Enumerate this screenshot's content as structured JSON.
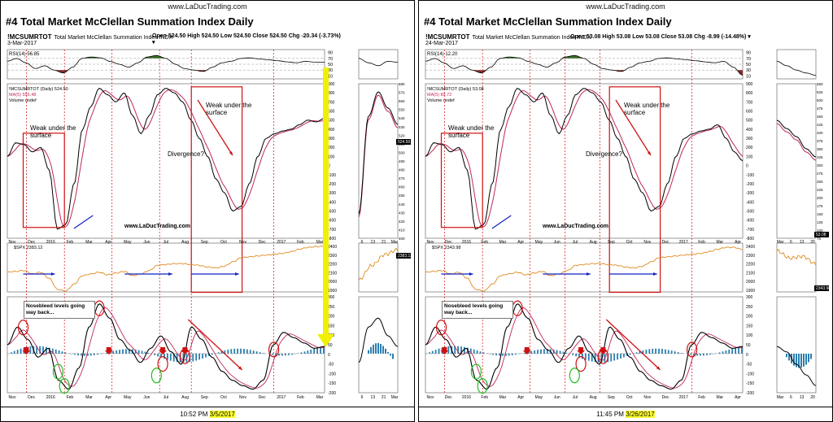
{
  "panels": [
    {
      "url": "www.LaDucTrading.com",
      "title": "#4 Total Market McClellan Summation Index Daily",
      "symbol": "!MCSUMRTOT",
      "symbol_desc": "Total Market McClellan Summation Index  INDX",
      "date": "3-Mar-2017",
      "ohlc": "Open 524.50  High 524.50  Low 524.50  Close 524.50  Chg -20.34 (-3.73%) ▾",
      "rsi_label": "RSI(14) 56.85",
      "price_legend": [
        "!MCSUMRTOT (Daily) 524.50",
        "MA(5) 555.48",
        "Volume undef"
      ],
      "spx_legend": "$SPX 2383.12",
      "spx_last": "2383.12",
      "sum_last": "524.50",
      "footer_time": "10:52 PM",
      "footer_date": "3/5/2017",
      "annotations": {
        "weak1": "Weak under the surface",
        "weak2": "Weak under the surface",
        "divergence": "Divergence?",
        "nosebleed": "Nosebleed levels going way back..."
      },
      "watermark": "www.LaDucTrading.com",
      "xticks_main": [
        "Nov",
        "Dec",
        "2016",
        "Feb",
        "Mar",
        "Apr",
        "May",
        "Jun",
        "Jul",
        "Aug",
        "Sep",
        "Oct",
        "Nov",
        "Dec",
        "2017",
        "Feb",
        "Mar"
      ],
      "xticks_zoom": [
        "6",
        "13",
        "21",
        "Mar"
      ],
      "yticks_rsi": [
        "90",
        "70",
        "50",
        "30",
        "10"
      ],
      "yticks_price": [
        "900",
        "800",
        "700",
        "600",
        "500",
        "400",
        "300",
        "200",
        "100",
        "0",
        "-100",
        "-200",
        "-300",
        "-400",
        "-500",
        "-600",
        "-700",
        "-800"
      ],
      "yticks_price_zoom": [
        "580",
        "570",
        "560",
        "550",
        "540",
        "530",
        "520",
        "510",
        "500",
        "490",
        "480",
        "470",
        "460",
        "450",
        "440",
        "430",
        "420",
        "410",
        "400"
      ],
      "yticks_spx": [
        "2400",
        "2300",
        "2200",
        "2100",
        "2000",
        "1900"
      ],
      "yticks_osc": [
        "300",
        "250",
        "200",
        "150",
        "100",
        "50",
        "0",
        "-50",
        "-100",
        "-150",
        "-200"
      ]
    },
    {
      "url": "www.LaDucTrading.com",
      "title": "#4 Total Market McClellan Summation Index Daily",
      "symbol": "!MCSUMRTOT",
      "symbol_desc": "Total Market McClellan Summation Index  INDX",
      "date": "24-Mar-2017",
      "ohlc": "Open 53.08  High 53.08  Low 53.08  Close 53.08  Chg -8.99 (-14.48%) ▾",
      "rsi_label": "RSI(14) 12.20",
      "price_legend": [
        "!MCSUMRTOT (Daily) 53.08",
        "MA(5) 89.72",
        "Volume undef"
      ],
      "spx_legend": "$SPX 2343.98",
      "spx_last": "2343.98",
      "sum_last": "53.08",
      "footer_time": "11:45 PM",
      "footer_date": "3/26/2017",
      "annotations": {
        "weak1": "Weak under the surface",
        "weak2": "Weak under the surface",
        "divergence": "Divergence?",
        "nosebleed": "Nosebleed levels going way back..."
      },
      "watermark": "www.LaDucTrading.com",
      "xticks_main": [
        "Nov",
        "Dec",
        "2016",
        "Feb",
        "Mar",
        "Apr",
        "May",
        "Jun",
        "Jul",
        "Aug",
        "Sep",
        "Oct",
        "Nov",
        "Dec",
        "2017",
        "Feb",
        "Mar",
        "Apr"
      ],
      "xticks_zoom": [
        "Mar",
        "6",
        "13",
        "20"
      ],
      "yticks_rsi": [
        "90",
        "70",
        "50",
        "30",
        "10"
      ],
      "yticks_price": [
        "900",
        "800",
        "700",
        "600",
        "500",
        "400",
        "300",
        "200",
        "100",
        "0",
        "-100",
        "-200",
        "-300",
        "-400",
        "-500",
        "-600",
        "-700",
        "-800"
      ],
      "yticks_price_zoom": [
        "550",
        "525",
        "500",
        "475",
        "450",
        "425",
        "400",
        "375",
        "350",
        "325",
        "300",
        "275",
        "250",
        "225",
        "200",
        "175",
        "150",
        "125",
        "100",
        "75"
      ],
      "yticks_spx": [
        "2400",
        "2300",
        "2200",
        "2100",
        "2000",
        "1900"
      ],
      "yticks_osc": [
        "300",
        "250",
        "200",
        "150",
        "100",
        "50",
        "0",
        "-50",
        "-100",
        "-150",
        "-200"
      ]
    }
  ],
  "chart_data": {
    "type": "line",
    "series": [
      {
        "name": "!MCSUMRTOT (Daily)",
        "values": [
          100,
          250,
          230,
          150,
          200,
          -50,
          -700,
          -650,
          -200,
          400,
          650,
          850,
          780,
          700,
          800,
          550,
          350,
          550,
          780,
          850,
          800,
          700,
          500,
          300,
          100,
          -150,
          -300,
          -500,
          -450,
          -200,
          100,
          300,
          350,
          380,
          400,
          450,
          500,
          480,
          520
        ]
      },
      {
        "name": "$SPX",
        "values": [
          2080,
          2090,
          2100,
          2060,
          2080,
          2010,
          1880,
          1860,
          1940,
          2040,
          2060,
          2080,
          2050,
          2070,
          2090,
          2040,
          2060,
          2100,
          2160,
          2170,
          2180,
          2180,
          2170,
          2160,
          2140,
          2130,
          2150,
          2200,
          2250,
          2260,
          2270,
          2280,
          2290,
          2300,
          2320,
          2350,
          2370,
          2380,
          2383
        ]
      }
    ],
    "ylim": [
      -800,
      900
    ]
  },
  "colors": {
    "ma": "#c0285a",
    "rsi_up": "#3a6e2a",
    "rsi_down": "#8b2a2a",
    "spx": "#e08a20",
    "histogram": "#2a7fb0",
    "arrow_red": "#d01010",
    "arrow_blue": "#1020c0",
    "yellow": "#f0f000",
    "green_circle": "#20c020"
  }
}
